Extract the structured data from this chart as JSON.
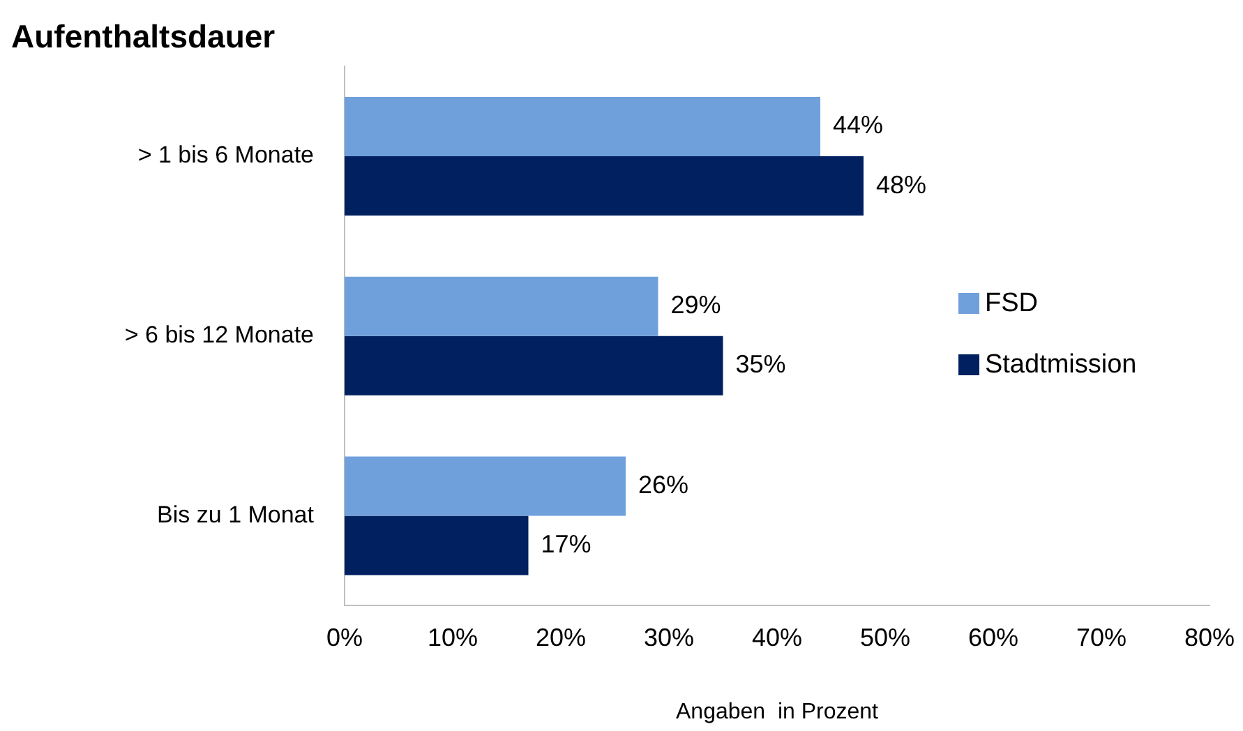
{
  "chart_data": {
    "type": "bar",
    "orientation": "horizontal",
    "title": "Aufenthaltsdauer",
    "xlabel": "Angaben  in Prozent",
    "categories": [
      "> 1 bis 6 Monate",
      "> 6 bis 12 Monate",
      "Bis zu 1 Monat"
    ],
    "series": [
      {
        "name": "FSD",
        "color": "#6fa0dc",
        "values": [
          44,
          29,
          26
        ],
        "value_labels": [
          "44%",
          "29%",
          "26%"
        ]
      },
      {
        "name": "Stadtmission",
        "color": "#002060",
        "values": [
          48,
          35,
          17
        ],
        "value_labels": [
          "48%",
          "35%",
          "17%"
        ]
      }
    ],
    "xlim": [
      0,
      80
    ],
    "xticks": [
      {
        "value": 0,
        "label": "0%"
      },
      {
        "value": 10,
        "label": "10%"
      },
      {
        "value": 20,
        "label": "20%"
      },
      {
        "value": 30,
        "label": "30%"
      },
      {
        "value": 40,
        "label": "40%"
      },
      {
        "value": 50,
        "label": "50%"
      },
      {
        "value": 60,
        "label": "60%"
      },
      {
        "value": 70,
        "label": "70%"
      },
      {
        "value": 80,
        "label": "80%"
      }
    ],
    "grid": false,
    "legend": "right"
  }
}
